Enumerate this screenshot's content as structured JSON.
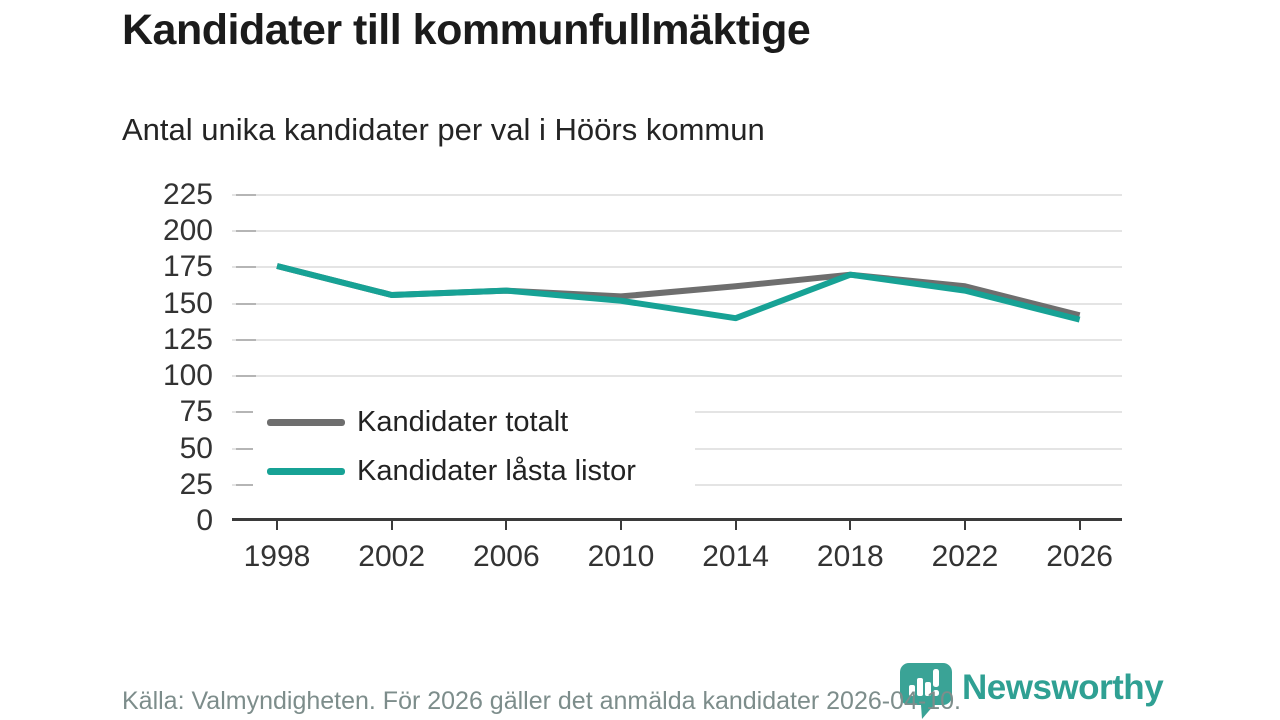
{
  "header": {
    "title": "Kandidater till kommunfullmäktige",
    "subtitle": "Antal unika kandidater per val i Höörs kommun"
  },
  "chart_data": {
    "type": "line",
    "categories": [
      "1998",
      "2002",
      "2006",
      "2010",
      "2014",
      "2018",
      "2022",
      "2026"
    ],
    "series": [
      {
        "name": "Kandidater totalt",
        "color": "#6e6e6e",
        "values": [
          176,
          156,
          159,
          155,
          162,
          170,
          162,
          142
        ]
      },
      {
        "name": "Kandidater låsta listor",
        "color": "#17a295",
        "values": [
          176,
          156,
          159,
          152,
          140,
          170,
          159,
          139
        ]
      }
    ],
    "title": "Kandidater till kommunfullmäktige",
    "subtitle": "Antal unika kandidater per val i Höörs kommun",
    "xlabel": "",
    "ylabel": "",
    "ylim": [
      0,
      225
    ],
    "yticks": [
      0,
      25,
      50,
      75,
      100,
      125,
      150,
      175,
      200,
      225
    ],
    "grid": "horizontal",
    "legend_position": "inside-lower-left"
  },
  "footer": {
    "source_text": "Källa: Valmyndigheten. För 2026 gäller det anmälda kandidater 2026-04-10."
  },
  "branding": {
    "wordmark": "Newsworthy",
    "logo_color": "#3aa396",
    "wordmark_color": "#2fa093"
  },
  "colors": {
    "background": "#ffffff",
    "grid": "#e4e4e4",
    "axis": "#3a3a3a",
    "axis_text": "#333333",
    "footer_text": "#7d8d8b"
  }
}
